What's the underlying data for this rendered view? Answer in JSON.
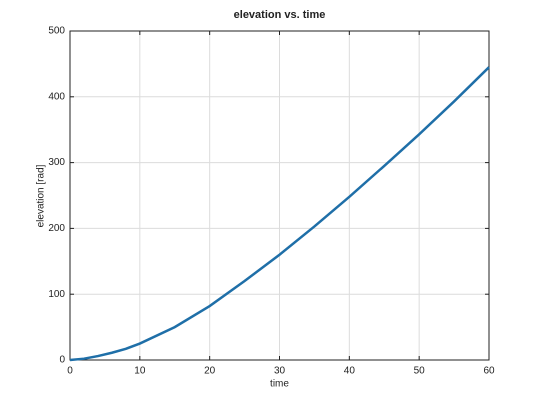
{
  "chart_data": {
    "type": "line",
    "title": "elevation vs. time",
    "xlabel": "time",
    "ylabel": "elevation [rad]",
    "x": [
      0,
      2,
      4,
      6,
      8,
      10,
      15,
      20,
      25,
      30,
      35,
      40,
      45,
      50,
      55,
      60
    ],
    "series": [
      {
        "name": "elevation",
        "color": "#1f6fa8",
        "values": [
          0,
          2,
          6,
          11,
          17,
          25,
          50,
          82,
          120,
          160,
          203,
          248,
          295,
          343,
          393,
          445
        ]
      }
    ],
    "xlim": [
      0,
      60
    ],
    "xticks": [
      0,
      10,
      20,
      30,
      40,
      50,
      60
    ],
    "ylim": [
      0,
      500
    ],
    "yticks": [
      0,
      100,
      200,
      300,
      400,
      500
    ],
    "grid": true
  }
}
